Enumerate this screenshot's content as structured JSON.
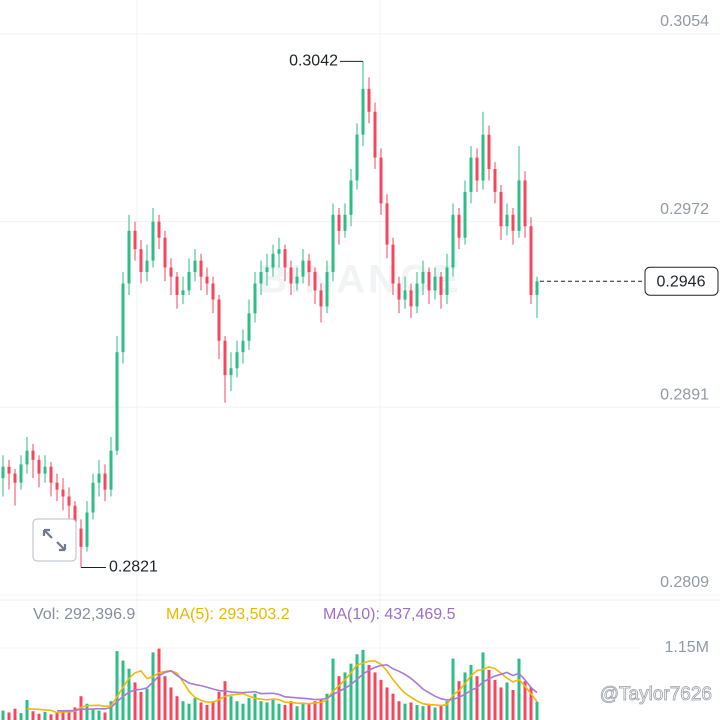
{
  "chart_data": {
    "type": "candlestick",
    "up_color": "#2ebd85",
    "down_color": "#f6465d",
    "ylim": [
      0.28068,
      0.30688
    ],
    "yticks": [
      0.3054,
      0.2972,
      0.2891,
      0.2809
    ],
    "grid": true,
    "candles": [
      [
        0.286,
        0.287,
        0.2852,
        0.2865
      ],
      [
        0.2865,
        0.2868,
        0.2855,
        0.2862
      ],
      [
        0.2862,
        0.2864,
        0.2848,
        0.2858
      ],
      [
        0.2858,
        0.287,
        0.2855,
        0.2866
      ],
      [
        0.2866,
        0.2878,
        0.2862,
        0.2872
      ],
      [
        0.2872,
        0.2875,
        0.286,
        0.2868
      ],
      [
        0.2868,
        0.287,
        0.2856,
        0.2862
      ],
      [
        0.2862,
        0.287,
        0.2858,
        0.2865
      ],
      [
        0.2865,
        0.2867,
        0.2852,
        0.2858
      ],
      [
        0.2858,
        0.2862,
        0.285,
        0.2855
      ],
      [
        0.2855,
        0.286,
        0.2846,
        0.2852
      ],
      [
        0.2852,
        0.2856,
        0.2842,
        0.2848
      ],
      [
        0.2848,
        0.285,
        0.2832,
        0.2838
      ],
      [
        0.2838,
        0.2842,
        0.2821,
        0.283
      ],
      [
        0.283,
        0.285,
        0.2828,
        0.2845
      ],
      [
        0.2845,
        0.2862,
        0.2842,
        0.2858
      ],
      [
        0.2858,
        0.2868,
        0.2852,
        0.2862
      ],
      [
        0.2862,
        0.2866,
        0.285,
        0.2855
      ],
      [
        0.2855,
        0.2878,
        0.2852,
        0.2872
      ],
      [
        0.2872,
        0.2922,
        0.287,
        0.2915
      ],
      [
        0.2915,
        0.295,
        0.291,
        0.2945
      ],
      [
        0.2945,
        0.2975,
        0.294,
        0.2968
      ],
      [
        0.2968,
        0.2972,
        0.2955,
        0.296
      ],
      [
        0.296,
        0.2964,
        0.2945,
        0.295
      ],
      [
        0.295,
        0.2962,
        0.2946,
        0.2955
      ],
      [
        0.2955,
        0.2978,
        0.2952,
        0.2972
      ],
      [
        0.2972,
        0.2975,
        0.296,
        0.2965
      ],
      [
        0.2965,
        0.2968,
        0.2946,
        0.2952
      ],
      [
        0.2952,
        0.2956,
        0.294,
        0.2948
      ],
      [
        0.2948,
        0.295,
        0.2934,
        0.294
      ],
      [
        0.294,
        0.2948,
        0.2936,
        0.2942
      ],
      [
        0.2942,
        0.2956,
        0.294,
        0.295
      ],
      [
        0.295,
        0.296,
        0.2946,
        0.2955
      ],
      [
        0.2955,
        0.2958,
        0.2942,
        0.2948
      ],
      [
        0.2948,
        0.2952,
        0.294,
        0.2945
      ],
      [
        0.2945,
        0.2948,
        0.2932,
        0.2938
      ],
      [
        0.2938,
        0.294,
        0.2912,
        0.292
      ],
      [
        0.292,
        0.2922,
        0.2893,
        0.2905
      ],
      [
        0.2905,
        0.2915,
        0.2898,
        0.2908
      ],
      [
        0.2908,
        0.292,
        0.2904,
        0.2915
      ],
      [
        0.2915,
        0.2925,
        0.291,
        0.292
      ],
      [
        0.292,
        0.2938,
        0.2916,
        0.2932
      ],
      [
        0.2932,
        0.295,
        0.2928,
        0.2945
      ],
      [
        0.2945,
        0.2955,
        0.294,
        0.295
      ],
      [
        0.295,
        0.2958,
        0.2944,
        0.2952
      ],
      [
        0.2952,
        0.2962,
        0.2948,
        0.2958
      ],
      [
        0.2958,
        0.2965,
        0.2952,
        0.296
      ],
      [
        0.296,
        0.2962,
        0.2946,
        0.2952
      ],
      [
        0.2952,
        0.2955,
        0.294,
        0.2945
      ],
      [
        0.2945,
        0.2952,
        0.2942,
        0.2948
      ],
      [
        0.2948,
        0.296,
        0.2945,
        0.2955
      ],
      [
        0.2955,
        0.2958,
        0.2944,
        0.295
      ],
      [
        0.295,
        0.2952,
        0.2936,
        0.2942
      ],
      [
        0.2942,
        0.2945,
        0.2928,
        0.2935
      ],
      [
        0.2935,
        0.2955,
        0.2932,
        0.295
      ],
      [
        0.295,
        0.298,
        0.2946,
        0.2975
      ],
      [
        0.2975,
        0.2978,
        0.2962,
        0.2968
      ],
      [
        0.2968,
        0.298,
        0.2965,
        0.2975
      ],
      [
        0.2975,
        0.2995,
        0.297,
        0.299
      ],
      [
        0.299,
        0.3015,
        0.2986,
        0.301
      ],
      [
        0.301,
        0.3042,
        0.3005,
        0.303
      ],
      [
        0.303,
        0.3035,
        0.3015,
        0.302
      ],
      [
        0.302,
        0.3024,
        0.2995,
        0.3
      ],
      [
        0.3,
        0.3004,
        0.2975,
        0.298
      ],
      [
        0.298,
        0.2984,
        0.2956,
        0.2962
      ],
      [
        0.2962,
        0.2965,
        0.294,
        0.2945
      ],
      [
        0.2945,
        0.2948,
        0.2932,
        0.2938
      ],
      [
        0.2938,
        0.2948,
        0.2934,
        0.2942
      ],
      [
        0.2942,
        0.2945,
        0.293,
        0.2935
      ],
      [
        0.2935,
        0.295,
        0.2932,
        0.2945
      ],
      [
        0.2945,
        0.2955,
        0.294,
        0.295
      ],
      [
        0.295,
        0.2952,
        0.2936,
        0.2942
      ],
      [
        0.2942,
        0.2952,
        0.2938,
        0.2948
      ],
      [
        0.2948,
        0.295,
        0.2934,
        0.294
      ],
      [
        0.294,
        0.2958,
        0.2936,
        0.2952
      ],
      [
        0.2952,
        0.298,
        0.2948,
        0.2975
      ],
      [
        0.2975,
        0.2978,
        0.296,
        0.2965
      ],
      [
        0.2965,
        0.299,
        0.2962,
        0.2985
      ],
      [
        0.2985,
        0.3005,
        0.298,
        0.3
      ],
      [
        0.3,
        0.3004,
        0.2985,
        0.299
      ],
      [
        0.299,
        0.302,
        0.2986,
        0.301
      ],
      [
        0.301,
        0.3014,
        0.299,
        0.2995
      ],
      [
        0.2995,
        0.2998,
        0.298,
        0.2985
      ],
      [
        0.2985,
        0.2988,
        0.2964,
        0.297
      ],
      [
        0.297,
        0.298,
        0.2966,
        0.2975
      ],
      [
        0.2975,
        0.2978,
        0.2962,
        0.2968
      ],
      [
        0.2968,
        0.3005,
        0.2965,
        0.299
      ],
      [
        0.299,
        0.2994,
        0.2965,
        0.297
      ],
      [
        0.297,
        0.2974,
        0.2936,
        0.294
      ],
      [
        0.294,
        0.2948,
        0.293,
        0.2946
      ]
    ],
    "high_label": 0.3042,
    "low_label": 0.2821,
    "last_price": 0.2946,
    "watermark": "BINANCE",
    "volume": {
      "legend": [
        "Vol: 292,396.9",
        "MA(5): 293,503.2",
        "MA(10): 437,469.5"
      ],
      "legend_colors": [
        "#848e9c",
        "#e6b800",
        "#9c6fc9"
      ],
      "vlim": [
        0,
        1150000
      ],
      "vticks": [
        {
          "value": 1150000,
          "label": "1.15M"
        }
      ],
      "values": [
        150000,
        120000,
        180000,
        110000,
        320000,
        140000,
        100000,
        130000,
        90000,
        120000,
        160000,
        140000,
        200000,
        380000,
        260000,
        180000,
        150000,
        120000,
        300000,
        1100000,
        950000,
        820000,
        600000,
        450000,
        500000,
        1080000,
        1140000,
        700000,
        520000,
        380000,
        300000,
        260000,
        350000,
        280000,
        240000,
        300000,
        450000,
        620000,
        380000,
        300000,
        260000,
        350000,
        420000,
        300000,
        280000,
        320000,
        260000,
        240000,
        300000,
        220000,
        280000,
        260000,
        300000,
        340000,
        420000,
        980000,
        700000,
        760000,
        900000,
        1050000,
        1120000,
        880000,
        760000,
        640000,
        520000,
        420000,
        300000,
        260000,
        280000,
        240000,
        220000,
        260000,
        200000,
        240000,
        300000,
        980000,
        620000,
        760000,
        880000,
        700000,
        1080000,
        800000,
        640000,
        520000,
        600000,
        480000,
        980000,
        620000,
        520000,
        292396.9
      ],
      "series": [
        {
          "name": "MA(5)",
          "color": "#f0b90b",
          "values": [
            null,
            null,
            null,
            null,
            176000,
            174000,
            170000,
            160000,
            156000,
            116000,
            128000,
            128000,
            142000,
            204000,
            228000,
            232000,
            234000,
            218000,
            226000,
            370000,
            524000,
            664000,
            754000,
            784000,
            664000,
            690000,
            754000,
            774000,
            788000,
            748000,
            608000,
            460000,
            362000,
            314000,
            286000,
            286000,
            324000,
            378000,
            398000,
            410000,
            422000,
            382000,
            346000,
            332000,
            322000,
            334000,
            326000,
            284000,
            280000,
            268000,
            264000,
            260000,
            272000,
            280000,
            324000,
            460000,
            548000,
            640000,
            752000,
            878000,
            906000,
            942000,
            942000,
            890000,
            784000,
            644000,
            528000,
            428000,
            364000,
            304000,
            260000,
            244000,
            240000,
            232000,
            244000,
            400000,
            468000,
            580000,
            708000,
            788000,
            808000,
            848000,
            820000,
            748000,
            668000,
            608000,
            644000,
            540000,
            420000,
            293503.2
          ]
        },
        {
          "name": "MA(10)",
          "color": "#a77bd6",
          "values": [
            null,
            null,
            null,
            null,
            null,
            null,
            null,
            null,
            null,
            146000,
            147000,
            149000,
            150000,
            177000,
            171000,
            175000,
            180000,
            179000,
            197000,
            295000,
            374000,
            442000,
            482000,
            489000,
            513000,
            605000,
            704000,
            762000,
            784000,
            712000,
            647000,
            591000,
            566000,
            549000,
            523000,
            495000,
            470000,
            462000,
            448000,
            440000,
            436000,
            445000,
            453000,
            421000,
            425000,
            427000,
            408000,
            370000,
            362000,
            354000,
            346000,
            339000,
            327000,
            331000,
            345000,
            411000,
            455000,
            507000,
            567000,
            649000,
            733000,
            795000,
            841000,
            871000,
            881000,
            818000,
            778000,
            728000,
            664000,
            583000,
            493000,
            436000,
            380000,
            340000,
            318000,
            330000,
            362000,
            412000,
            472000,
            518000,
            604000,
            658000,
            702000,
            730000,
            760000,
            710000,
            746000,
            640000,
            520000,
            437469.5
          ]
        }
      ]
    },
    "credit": "@Taylor7626"
  }
}
